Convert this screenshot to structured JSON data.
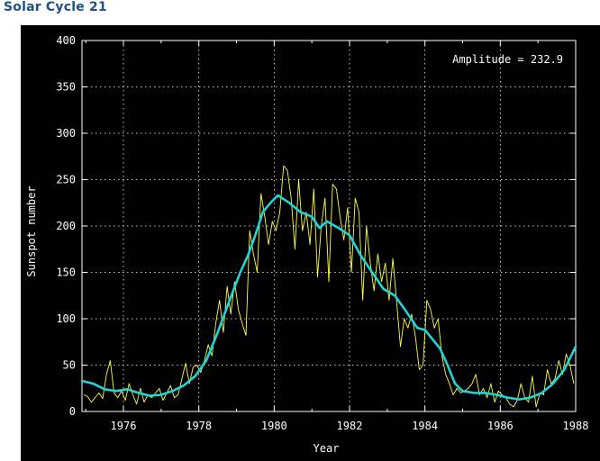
{
  "page": {
    "title": "Solar Cycle 21"
  },
  "chart_data": {
    "type": "line",
    "title": "",
    "xlabel": "Year",
    "ylabel": "Sunspot number",
    "xlim": [
      1974.9,
      1988.0
    ],
    "ylim": [
      0,
      400
    ],
    "x_ticks": [
      1976,
      1978,
      1980,
      1982,
      1984,
      1986,
      1988
    ],
    "y_ticks": [
      0,
      50,
      100,
      150,
      200,
      250,
      300,
      350,
      400
    ],
    "grid": true,
    "annotation": "Amplitude = 232.9",
    "colors": {
      "background": "#000000",
      "axes": "#ffffff",
      "grid": "#ffffff",
      "monthly": "#ffff44",
      "smoothed": "#22d3dc",
      "title": "#1f4f86"
    },
    "series": [
      {
        "style": "monthly",
        "x": [
          1974.95,
          1975.05,
          1975.15,
          1975.25,
          1975.35,
          1975.45,
          1975.55,
          1975.65,
          1975.75,
          1975.85,
          1975.95,
          1976.05,
          1976.15,
          1976.25,
          1976.35,
          1976.45,
          1976.55,
          1976.65,
          1976.75,
          1976.85,
          1976.95,
          1977.05,
          1977.15,
          1977.25,
          1977.35,
          1977.45,
          1977.55,
          1977.65,
          1977.75,
          1977.85,
          1977.95,
          1978.05,
          1978.15,
          1978.25,
          1978.35,
          1978.45,
          1978.55,
          1978.65,
          1978.75,
          1978.85,
          1978.95,
          1979.05,
          1979.15,
          1979.25,
          1979.35,
          1979.45,
          1979.55,
          1979.65,
          1979.75,
          1979.85,
          1979.95,
          1980.05,
          1980.15,
          1980.25,
          1980.35,
          1980.45,
          1980.55,
          1980.65,
          1980.75,
          1980.85,
          1980.95,
          1981.05,
          1981.15,
          1981.25,
          1981.35,
          1981.45,
          1981.55,
          1981.65,
          1981.75,
          1981.85,
          1981.95,
          1982.05,
          1982.15,
          1982.25,
          1982.35,
          1982.45,
          1982.55,
          1982.65,
          1982.75,
          1982.85,
          1982.95,
          1983.05,
          1983.15,
          1983.25,
          1983.35,
          1983.45,
          1983.55,
          1983.65,
          1983.75,
          1983.85,
          1983.95,
          1984.05,
          1984.15,
          1984.25,
          1984.35,
          1984.45,
          1984.55,
          1984.65,
          1984.75,
          1984.85,
          1984.95,
          1985.05,
          1985.15,
          1985.25,
          1985.35,
          1985.45,
          1985.55,
          1985.65,
          1985.75,
          1985.85,
          1985.95,
          1986.05,
          1986.15,
          1986.25,
          1986.35,
          1986.45,
          1986.55,
          1986.65,
          1986.75,
          1986.85,
          1986.95,
          1987.05,
          1987.15,
          1987.25,
          1987.35,
          1987.45,
          1987.55,
          1987.65,
          1987.75,
          1987.85,
          1987.95
        ],
        "y": [
          18,
          16,
          10,
          15,
          20,
          14,
          40,
          55,
          20,
          15,
          22,
          12,
          30,
          18,
          8,
          25,
          10,
          18,
          15,
          20,
          25,
          12,
          20,
          28,
          15,
          18,
          35,
          52,
          30,
          48,
          50,
          42,
          55,
          72,
          60,
          95,
          120,
          85,
          135,
          105,
          140,
          110,
          95,
          82,
          195,
          170,
          150,
          235,
          210,
          180,
          205,
          195,
          215,
          265,
          260,
          230,
          175,
          250,
          195,
          215,
          180,
          240,
          145,
          200,
          230,
          140,
          245,
          240,
          210,
          185,
          220,
          150,
          230,
          215,
          120,
          200,
          160,
          130,
          170,
          140,
          160,
          120,
          165,
          118,
          70,
          100,
          90,
          105,
          80,
          45,
          50,
          120,
          110,
          90,
          100,
          60,
          40,
          30,
          18,
          25,
          20,
          22,
          25,
          30,
          40,
          18,
          25,
          15,
          30,
          10,
          22,
          18,
          15,
          8,
          5,
          12,
          30,
          15,
          10,
          38,
          5,
          20,
          18,
          45,
          30,
          35,
          55,
          40,
          62,
          50,
          30
        ]
      },
      {
        "style": "smoothed",
        "x": [
          1974.9,
          1975.2,
          1975.5,
          1975.8,
          1976.1,
          1976.4,
          1976.7,
          1977.0,
          1977.3,
          1977.6,
          1977.9,
          1978.2,
          1978.5,
          1978.8,
          1979.1,
          1979.3,
          1979.5,
          1979.7,
          1979.9,
          1980.1,
          1980.4,
          1980.7,
          1981.0,
          1981.2,
          1981.4,
          1981.7,
          1982.0,
          1982.3,
          1982.6,
          1982.9,
          1983.2,
          1983.5,
          1983.8,
          1984.0,
          1984.2,
          1984.4,
          1984.6,
          1984.8,
          1985.0,
          1985.3,
          1985.6,
          1985.9,
          1986.2,
          1986.5,
          1986.8,
          1987.1,
          1987.4,
          1987.7,
          1988.0
        ],
        "y": [
          33,
          30,
          24,
          22,
          24,
          20,
          17,
          18,
          22,
          28,
          38,
          55,
          85,
          118,
          150,
          168,
          190,
          215,
          225,
          233,
          225,
          215,
          210,
          198,
          205,
          198,
          190,
          168,
          150,
          132,
          125,
          108,
          90,
          88,
          78,
          68,
          50,
          30,
          22,
          20,
          20,
          18,
          15,
          13,
          15,
          20,
          30,
          45,
          70
        ]
      }
    ]
  }
}
